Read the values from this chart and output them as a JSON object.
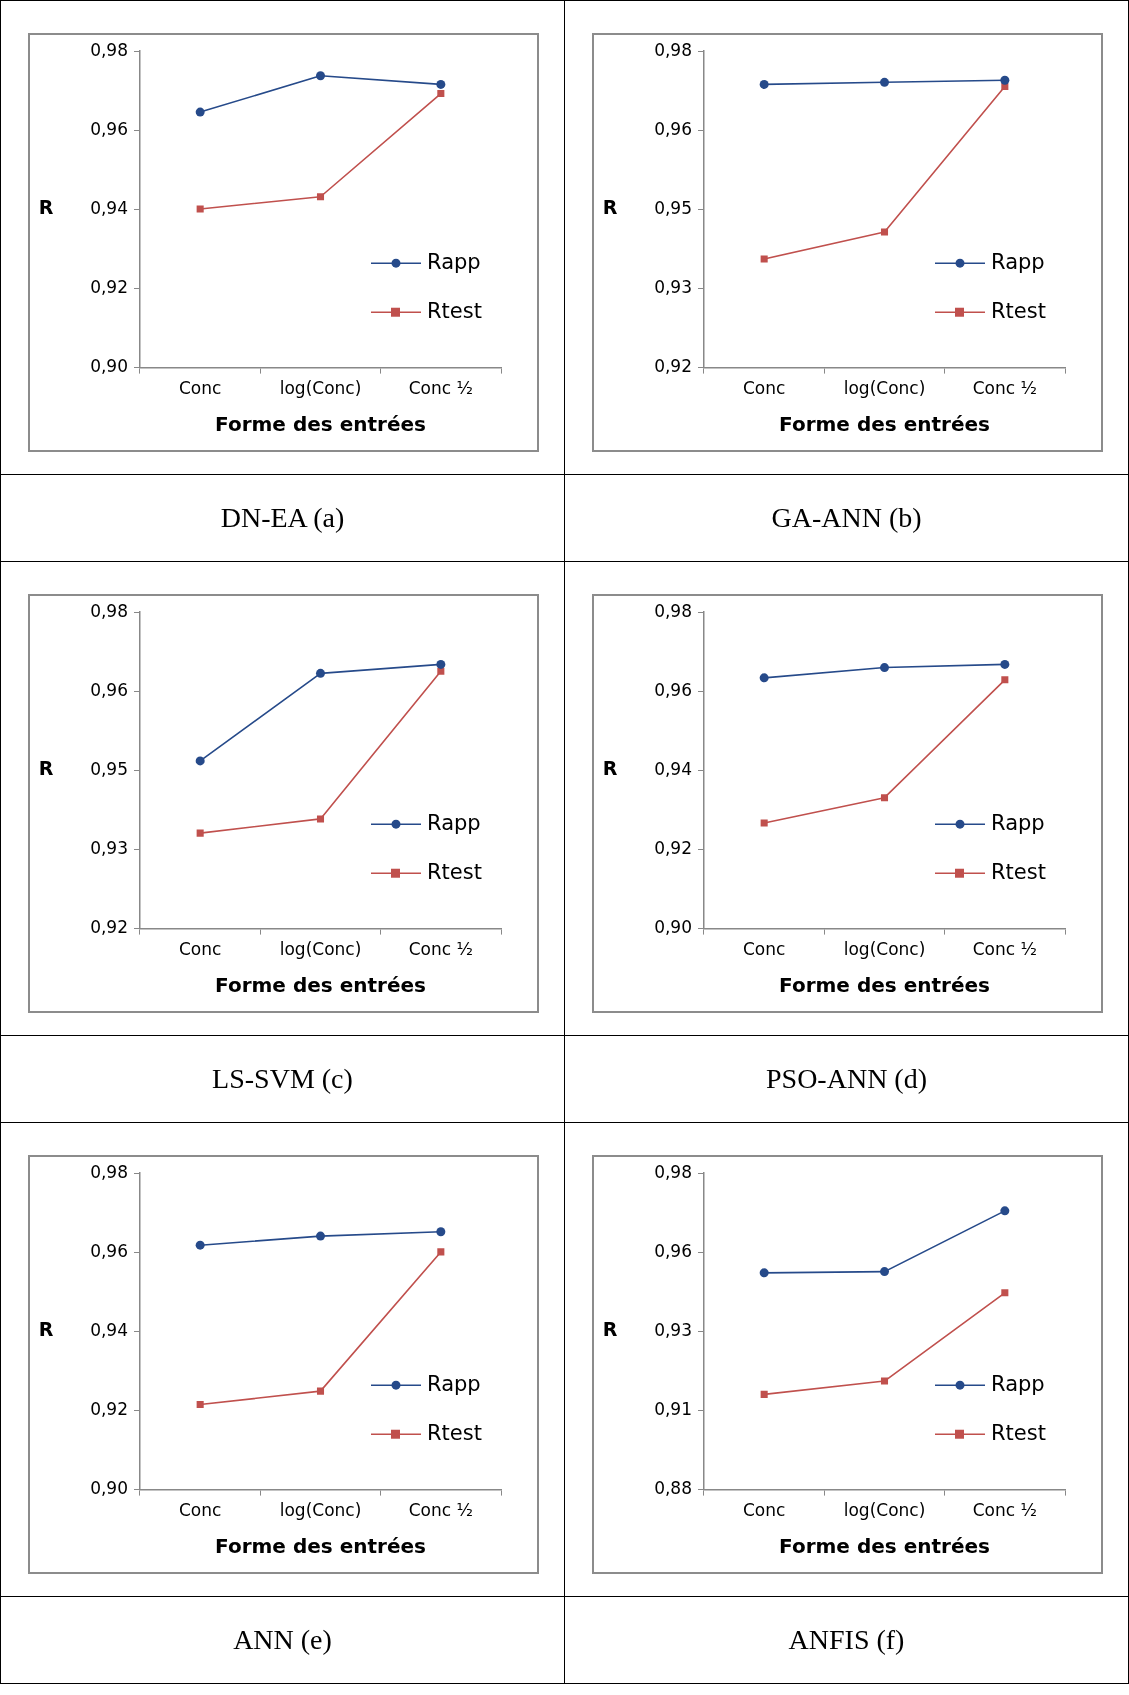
{
  "chart_data": [
    {
      "type": "line",
      "title": "DN-EA (a)",
      "xlabel": "Forme des entrées",
      "ylabel": "R",
      "categories": [
        "Conc",
        "log(Conc)",
        "Conc ½"
      ],
      "series": [
        {
          "name": "Rapp",
          "color": "#264a8a",
          "marker": "circle",
          "values": [
            0.9646,
            0.9738,
            0.9716
          ]
        },
        {
          "name": "Rtest",
          "color": "#c0504d",
          "marker": "square",
          "values": [
            0.9401,
            0.9432,
            0.9693
          ]
        }
      ],
      "ylim": [
        0.9,
        0.98
      ],
      "yticks": [
        {
          "value": 0.9,
          "label": "0,90"
        },
        {
          "value": 0.92,
          "label": "0,92"
        },
        {
          "value": 0.94,
          "label": "0,94"
        },
        {
          "value": 0.96,
          "label": "0,96"
        },
        {
          "value": 0.98,
          "label": "0,98"
        }
      ],
      "grid": false,
      "legend": "right"
    },
    {
      "type": "line",
      "title": "GA-ANN (b)",
      "xlabel": "Forme des entrées",
      "ylabel": "R",
      "categories": [
        "Conc",
        "log(Conc)",
        "Conc ½"
      ],
      "series": [
        {
          "name": "Rapp",
          "color": "#264a8a",
          "marker": "circle",
          "values": [
            0.9737,
            0.9741,
            0.9745
          ]
        },
        {
          "name": "Rtest",
          "color": "#c0504d",
          "marker": "square",
          "values": [
            0.9406,
            0.9457,
            0.9733
          ]
        }
      ],
      "ylim": [
        0.92,
        0.98
      ],
      "yticks": [
        {
          "value": 0.92,
          "label": "0,92"
        },
        {
          "value": 0.935,
          "label": "0,93"
        },
        {
          "value": 0.95,
          "label": "0,95"
        },
        {
          "value": 0.965,
          "label": "0,96"
        },
        {
          "value": 0.98,
          "label": "0,98"
        }
      ],
      "grid": false,
      "legend": "right"
    },
    {
      "type": "line",
      "title": "LS-SVM (c)",
      "xlabel": "Forme des entrées",
      "ylabel": "R",
      "categories": [
        "Conc",
        "log(Conc)",
        "Conc ½"
      ],
      "series": [
        {
          "name": "Rapp",
          "color": "#264a8a",
          "marker": "circle",
          "values": [
            0.9518,
            0.9684,
            0.9701
          ]
        },
        {
          "name": "Rtest",
          "color": "#c0504d",
          "marker": "square",
          "values": [
            0.9381,
            0.9408,
            0.9688
          ]
        }
      ],
      "ylim": [
        0.92,
        0.98
      ],
      "yticks": [
        {
          "value": 0.92,
          "label": "0,92"
        },
        {
          "value": 0.935,
          "label": "0,93"
        },
        {
          "value": 0.95,
          "label": "0,95"
        },
        {
          "value": 0.965,
          "label": "0,96"
        },
        {
          "value": 0.98,
          "label": "0,98"
        }
      ],
      "grid": false,
      "legend": "right"
    },
    {
      "type": "line",
      "title": "PSO-ANN (d)",
      "xlabel": "Forme des entrées",
      "ylabel": "R",
      "categories": [
        "Conc",
        "log(Conc)",
        "Conc ½"
      ],
      "series": [
        {
          "name": "Rapp",
          "color": "#264a8a",
          "marker": "circle",
          "values": [
            0.9634,
            0.966,
            0.9668
          ]
        },
        {
          "name": "Rtest",
          "color": "#c0504d",
          "marker": "square",
          "values": [
            0.9267,
            0.9331,
            0.9629
          ]
        }
      ],
      "ylim": [
        0.9,
        0.98
      ],
      "yticks": [
        {
          "value": 0.9,
          "label": "0,90"
        },
        {
          "value": 0.92,
          "label": "0,92"
        },
        {
          "value": 0.94,
          "label": "0,94"
        },
        {
          "value": 0.96,
          "label": "0,96"
        },
        {
          "value": 0.98,
          "label": "0,98"
        }
      ],
      "grid": false,
      "legend": "right"
    },
    {
      "type": "line",
      "title": "ANN (e)",
      "xlabel": "Forme des entrées",
      "ylabel": "R",
      "categories": [
        "Conc",
        "log(Conc)",
        "Conc ½"
      ],
      "series": [
        {
          "name": "Rapp",
          "color": "#264a8a",
          "marker": "circle",
          "values": [
            0.9618,
            0.9641,
            0.9652
          ]
        },
        {
          "name": "Rtest",
          "color": "#c0504d",
          "marker": "square",
          "values": [
            0.9215,
            0.9249,
            0.9601
          ]
        }
      ],
      "ylim": [
        0.9,
        0.98
      ],
      "yticks": [
        {
          "value": 0.9,
          "label": "0,90"
        },
        {
          "value": 0.92,
          "label": "0,92"
        },
        {
          "value": 0.94,
          "label": "0,94"
        },
        {
          "value": 0.96,
          "label": "0,96"
        },
        {
          "value": 0.98,
          "label": "0,98"
        }
      ],
      "grid": false,
      "legend": "right"
    },
    {
      "type": "line",
      "title": "ANFIS (f)",
      "xlabel": "Forme des entrées",
      "ylabel": "R",
      "categories": [
        "Conc",
        "log(Conc)",
        "Conc ½"
      ],
      "series": [
        {
          "name": "Rapp",
          "color": "#264a8a",
          "marker": "circle",
          "values": [
            0.9485,
            0.9489,
            0.9681
          ]
        },
        {
          "name": "Rtest",
          "color": "#c0504d",
          "marker": "square",
          "values": [
            0.9101,
            0.9143,
            0.9422
          ]
        }
      ],
      "ylim": [
        0.88,
        0.98
      ],
      "yticks": [
        {
          "value": 0.88,
          "label": "0,88"
        },
        {
          "value": 0.905,
          "label": "0,91"
        },
        {
          "value": 0.93,
          "label": "0,93"
        },
        {
          "value": 0.955,
          "label": "0,96"
        },
        {
          "value": 0.98,
          "label": "0,98"
        }
      ],
      "grid": false,
      "legend": "right"
    }
  ]
}
